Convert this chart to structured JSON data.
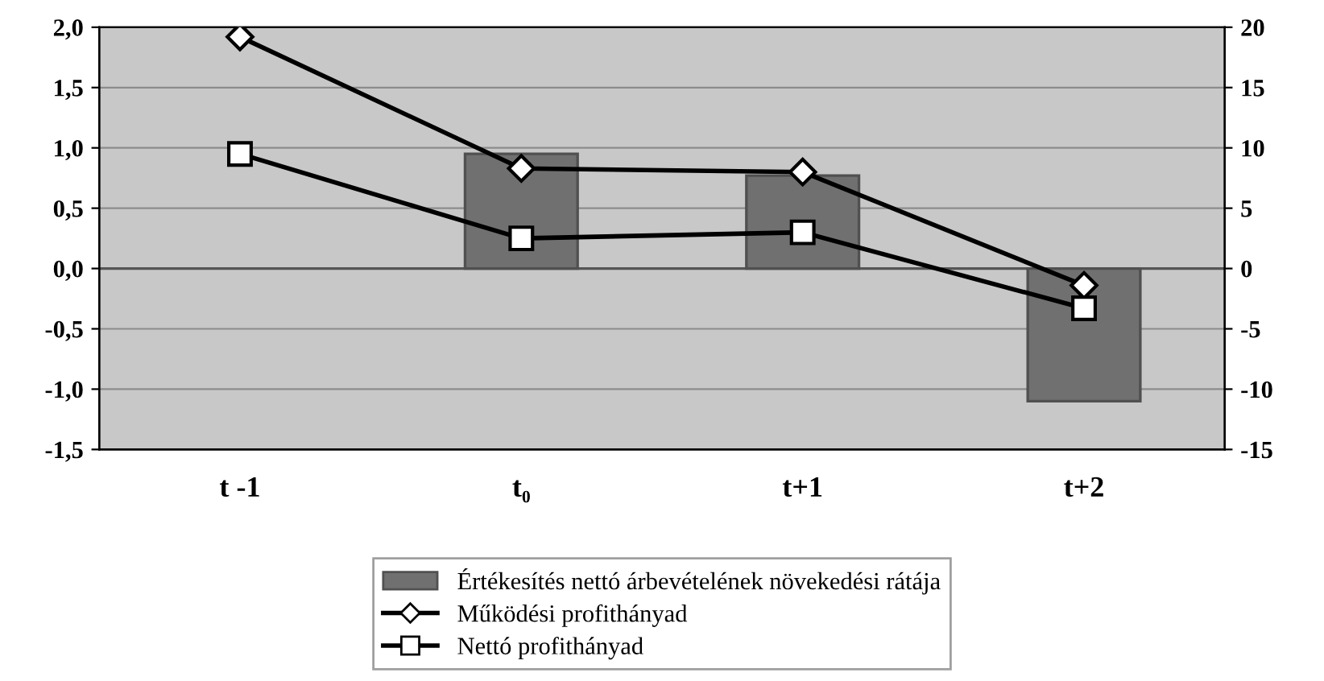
{
  "chart_data": {
    "type": "bar",
    "categories": [
      "t -1",
      "t₀",
      "t+1",
      "t+2"
    ],
    "series": [
      {
        "name": "Értékesítés nettó árbevételének növekedési rátája",
        "color": "#707070",
        "values": [
          null,
          0.95,
          0.77,
          -1.1
        ]
      },
      {
        "name": "Működési profithányad",
        "type": "line",
        "axis": "y2",
        "marker": "diamond",
        "color": "#000000",
        "values": [
          19.2,
          8.3,
          8.0,
          -1.4
        ]
      },
      {
        "name": "Nettó profithányad",
        "type": "line",
        "axis": "y2",
        "marker": "square",
        "color": "#000000",
        "values": [
          9.5,
          2.5,
          3.0,
          -3.3
        ]
      }
    ],
    "ylim": [
      -1.5,
      2.0
    ],
    "yticks": [
      {
        "value": -1.5,
        "label": "-1,5"
      },
      {
        "value": -1.0,
        "label": "-1,0"
      },
      {
        "value": -0.5,
        "label": "-0,5"
      },
      {
        "value": 0,
        "label": "0,0"
      },
      {
        "value": 0.5,
        "label": "0,5"
      },
      {
        "value": 1.0,
        "label": "1,0"
      },
      {
        "value": 1.5,
        "label": "1,5"
      },
      {
        "value": 2.0,
        "label": "2,0"
      }
    ],
    "y2lim": [
      -15,
      20
    ],
    "y2ticks": [
      -15,
      -10,
      -5,
      0,
      5,
      10,
      15,
      20
    ],
    "grid": "y",
    "legend": "bottom"
  }
}
